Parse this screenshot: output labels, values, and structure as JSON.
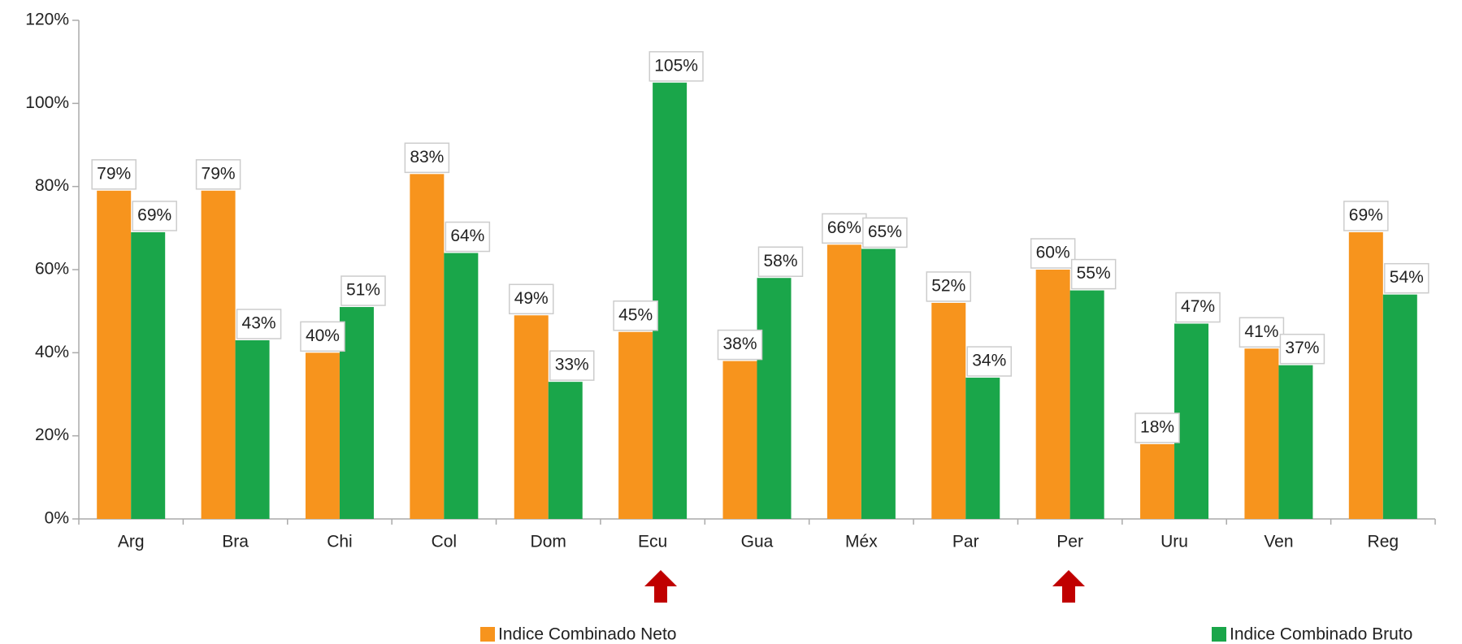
{
  "chart_data": {
    "type": "bar",
    "categories": [
      "Arg",
      "Bra",
      "Chi",
      "Col",
      "Dom",
      "Ecu",
      "Gua",
      "Méx",
      "Par",
      "Per",
      "Uru",
      "Ven",
      "Reg"
    ],
    "series": [
      {
        "name": "Indice Combinado Neto",
        "color": "#f7941d",
        "values": [
          79,
          79,
          40,
          83,
          49,
          45,
          38,
          66,
          52,
          60,
          18,
          41,
          69
        ],
        "value_labels": [
          "79%",
          "79%",
          "40%",
          "83%",
          "49%",
          "45%",
          "38%",
          "66%",
          "52%",
          "60%",
          "18%",
          "41%",
          "69%"
        ]
      },
      {
        "name": "Indice Combinado Bruto",
        "color": "#1aa64a",
        "values": [
          69,
          43,
          51,
          64,
          33,
          105,
          58,
          65,
          34,
          55,
          47,
          37,
          54
        ],
        "value_labels": [
          "69%",
          "43%",
          "51%",
          "64%",
          "33%",
          "105%",
          "58%",
          "65%",
          "34%",
          "55%",
          "47%",
          "37%",
          "54%"
        ]
      }
    ],
    "ylim": [
      0,
      120
    ],
    "yticks": [
      {
        "value": 0,
        "label": "0%"
      },
      {
        "value": 20,
        "label": "20%"
      },
      {
        "value": 40,
        "label": "40%"
      },
      {
        "value": 60,
        "label": "60%"
      },
      {
        "value": 80,
        "label": "80%"
      },
      {
        "value": 100,
        "label": "100%"
      },
      {
        "value": 120,
        "label": "120%"
      }
    ],
    "grid": false
  }
}
